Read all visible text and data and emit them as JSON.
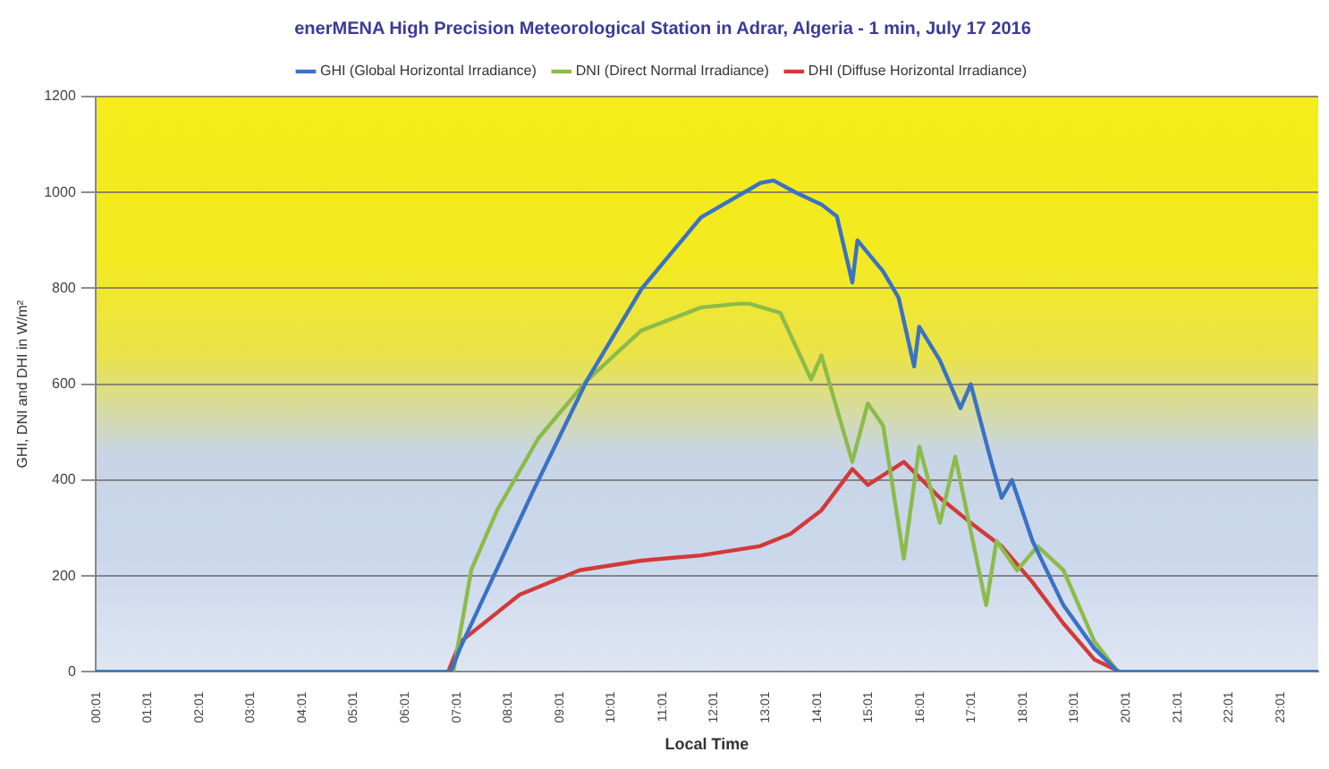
{
  "chart_data": {
    "type": "line",
    "title": "enerMENA High Precision Meteorological Station in Adrar, Algeria - 1 min, July 17 2016",
    "xlabel": "Local Time",
    "ylabel": "GHI, DNI and DHI in W/m²",
    "xlim": [
      0,
      23.75
    ],
    "ylim": [
      0,
      1200
    ],
    "yticks": [
      0,
      200,
      400,
      600,
      800,
      1000,
      1200
    ],
    "xticks": [
      {
        "value": 0.017,
        "label": "00:01"
      },
      {
        "value": 1.017,
        "label": "01:01"
      },
      {
        "value": 2.017,
        "label": "02:01"
      },
      {
        "value": 3.017,
        "label": "03:01"
      },
      {
        "value": 4.017,
        "label": "04:01"
      },
      {
        "value": 5.017,
        "label": "05:01"
      },
      {
        "value": 6.017,
        "label": "06:01"
      },
      {
        "value": 7.017,
        "label": "07:01"
      },
      {
        "value": 8.017,
        "label": "08:01"
      },
      {
        "value": 9.017,
        "label": "09:01"
      },
      {
        "value": 10.017,
        "label": "10:01"
      },
      {
        "value": 11.017,
        "label": "11:01"
      },
      {
        "value": 12.017,
        "label": "12:01"
      },
      {
        "value": 13.017,
        "label": "13:01"
      },
      {
        "value": 14.017,
        "label": "14:01"
      },
      {
        "value": 15.017,
        "label": "15:01"
      },
      {
        "value": 16.017,
        "label": "16:01"
      },
      {
        "value": 17.017,
        "label": "17:01"
      },
      {
        "value": 18.017,
        "label": "18:01"
      },
      {
        "value": 19.017,
        "label": "19:01"
      },
      {
        "value": 20.017,
        "label": "20:01"
      },
      {
        "value": 21.017,
        "label": "21:01"
      },
      {
        "value": 22.017,
        "label": "22:01"
      },
      {
        "value": 23.017,
        "label": "23:01"
      }
    ],
    "grid": "y",
    "legend": "top",
    "marker": "none",
    "line_style": "solid",
    "series": [
      {
        "name": "GHI (Global Horizontal Irradiance)",
        "color": "#3a72c4",
        "x": [
          0,
          6.9,
          7.08,
          8.49,
          9.54,
          10.6,
          11.76,
          12.92,
          13.17,
          13.6,
          14.1,
          14.4,
          14.7,
          14.8,
          15.3,
          15.6,
          15.9,
          16.0,
          16.4,
          16.8,
          17.0,
          17.4,
          17.6,
          17.8,
          18.2,
          18.8,
          19.4,
          19.86,
          23.75
        ],
        "values": [
          0,
          0,
          49,
          375,
          607,
          798,
          948,
          1020,
          1025,
          1000,
          975,
          950,
          812,
          900,
          835,
          780,
          637,
          720,
          650,
          550,
          600,
          438,
          363,
          400,
          273,
          139,
          49,
          0,
          0
        ]
      },
      {
        "name": "DNI (Direct Normal Irradiance)",
        "color": "#8dbb4a",
        "x": [
          0,
          6.95,
          7.3,
          7.8,
          8.6,
          9.54,
          10.6,
          11.76,
          12.5,
          12.7,
          13.3,
          13.9,
          14.1,
          14.7,
          15.0,
          15.3,
          15.7,
          16.0,
          16.4,
          16.7,
          17.3,
          17.5,
          17.9,
          18.3,
          18.8,
          19.4,
          19.86,
          23.75
        ],
        "values": [
          0,
          0,
          213,
          337,
          487,
          607,
          712,
          760,
          768,
          768,
          749,
          610,
          660,
          438,
          560,
          513,
          236,
          470,
          311,
          449,
          139,
          273,
          212,
          262,
          212,
          64,
          0,
          0
        ]
      },
      {
        "name": "DHI (Diffuse Horizontal Irradiance)",
        "color": "#d23a3a",
        "x": [
          0,
          6.85,
          7.08,
          8.24,
          9.4,
          10.6,
          11.76,
          12.9,
          13.5,
          14.1,
          14.7,
          15.0,
          15.7,
          16.4,
          17.0,
          17.6,
          18.2,
          18.8,
          19.4,
          19.9,
          23.75
        ],
        "values": [
          0,
          0,
          62,
          161,
          212,
          232,
          243,
          262,
          288,
          337,
          423,
          390,
          438,
          363,
          311,
          262,
          187,
          101,
          26,
          0,
          0
        ]
      }
    ]
  }
}
